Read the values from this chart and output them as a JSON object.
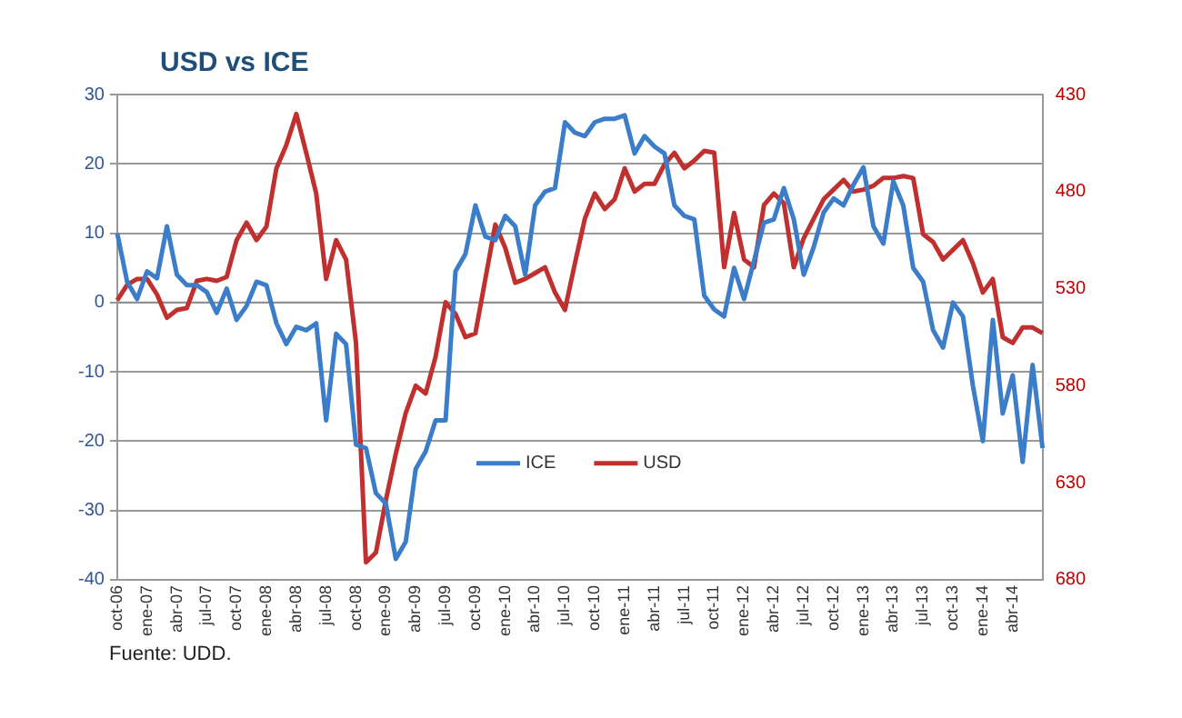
{
  "chart_data": {
    "type": "line",
    "title": "USD vs ICE",
    "categories": [
      "oct-06",
      null,
      null,
      "ene-07",
      null,
      null,
      "abr-07",
      null,
      null,
      "jul-07",
      null,
      null,
      "oct-07",
      null,
      null,
      "ene-08",
      null,
      null,
      "abr-08",
      null,
      null,
      "jul-08",
      null,
      null,
      "oct-08",
      null,
      null,
      "ene-09",
      null,
      null,
      "abr-09",
      null,
      null,
      "jul-09",
      null,
      null,
      "oct-09",
      null,
      null,
      "ene-10",
      null,
      null,
      "abr-10",
      null,
      null,
      "jul-10",
      null,
      null,
      "oct-10",
      null,
      null,
      "ene-11",
      null,
      null,
      "abr-11",
      null,
      null,
      "jul-11",
      null,
      null,
      "oct-11",
      null,
      null,
      "ene-12",
      null,
      null,
      "abr-12",
      null,
      null,
      "jul-12",
      null,
      null,
      "oct-12",
      null,
      null,
      "ene-13",
      null,
      null,
      "abr-13",
      null,
      null,
      "jul-13",
      null,
      null,
      "oct-13",
      null,
      null,
      "ene-14",
      null,
      null,
      "abr-14",
      null,
      null,
      null
    ],
    "series": [
      {
        "name": "ICE",
        "color": "#3b7dc8",
        "values": [
          10,
          3,
          0.5,
          4.5,
          3.5,
          11,
          4,
          2.5,
          2.5,
          1.5,
          -1.5,
          2,
          -2.5,
          -0.5,
          3,
          2.5,
          -3,
          -6,
          -3.5,
          -4,
          -3,
          -17,
          -4.5,
          -6,
          -20.5,
          -21,
          -27.5,
          -29,
          -37,
          -34.5,
          -24,
          -21.5,
          -17,
          -17,
          4.5,
          7,
          14,
          9.5,
          9,
          12.5,
          11,
          4,
          14,
          16,
          16.5,
          26,
          24.5,
          24,
          26,
          26.5,
          26.5,
          27,
          21.5,
          24,
          22.5,
          21.5,
          14,
          12.5,
          12,
          1,
          -1,
          -2,
          5,
          0.5,
          6,
          11.5,
          12,
          16.5,
          12,
          4,
          8,
          13,
          15,
          14,
          17,
          19.5,
          11,
          8.5,
          17.5,
          14,
          5,
          3,
          -4,
          -6.5,
          0,
          -2,
          -12,
          -20,
          -2.5,
          -16,
          -10.5,
          -23,
          -9,
          -21
        ]
      },
      {
        "name": "USD",
        "color": "#c0302f",
        "axis": "y2",
        "values": [
          536,
          528,
          525,
          525,
          533,
          545,
          541,
          540,
          526,
          525,
          526,
          524,
          505,
          496,
          505,
          498,
          468,
          456,
          440,
          460,
          481,
          525,
          505,
          515,
          558,
          671,
          666,
          639,
          615,
          594,
          580,
          584,
          565,
          537,
          543,
          555,
          553,
          525,
          497,
          509,
          527,
          525,
          522,
          519,
          532,
          541,
          517,
          494,
          481,
          489,
          484,
          468,
          480,
          476,
          476,
          466,
          460,
          468,
          464,
          459,
          460,
          519,
          491,
          515,
          519,
          487,
          481,
          486,
          519,
          504,
          494,
          484,
          479,
          474,
          480,
          479,
          477,
          473,
          473,
          472,
          473,
          502,
          506,
          515,
          510,
          505,
          517,
          532,
          525,
          555,
          558,
          550,
          550,
          553
        ]
      }
    ],
    "ylim": [
      -40,
      30
    ],
    "yticks": [
      -40,
      -30,
      -20,
      -10,
      0,
      10,
      20,
      30
    ],
    "y2lim": [
      680,
      430
    ],
    "y2ticks": [
      430,
      480,
      530,
      580,
      630,
      680
    ],
    "grid": "y",
    "legend": "bottom",
    "ref_lines": [
      {
        "axis": "y",
        "value": 0,
        "color": "#909090"
      }
    ],
    "annotations": [
      "Fuente: UDD."
    ]
  }
}
